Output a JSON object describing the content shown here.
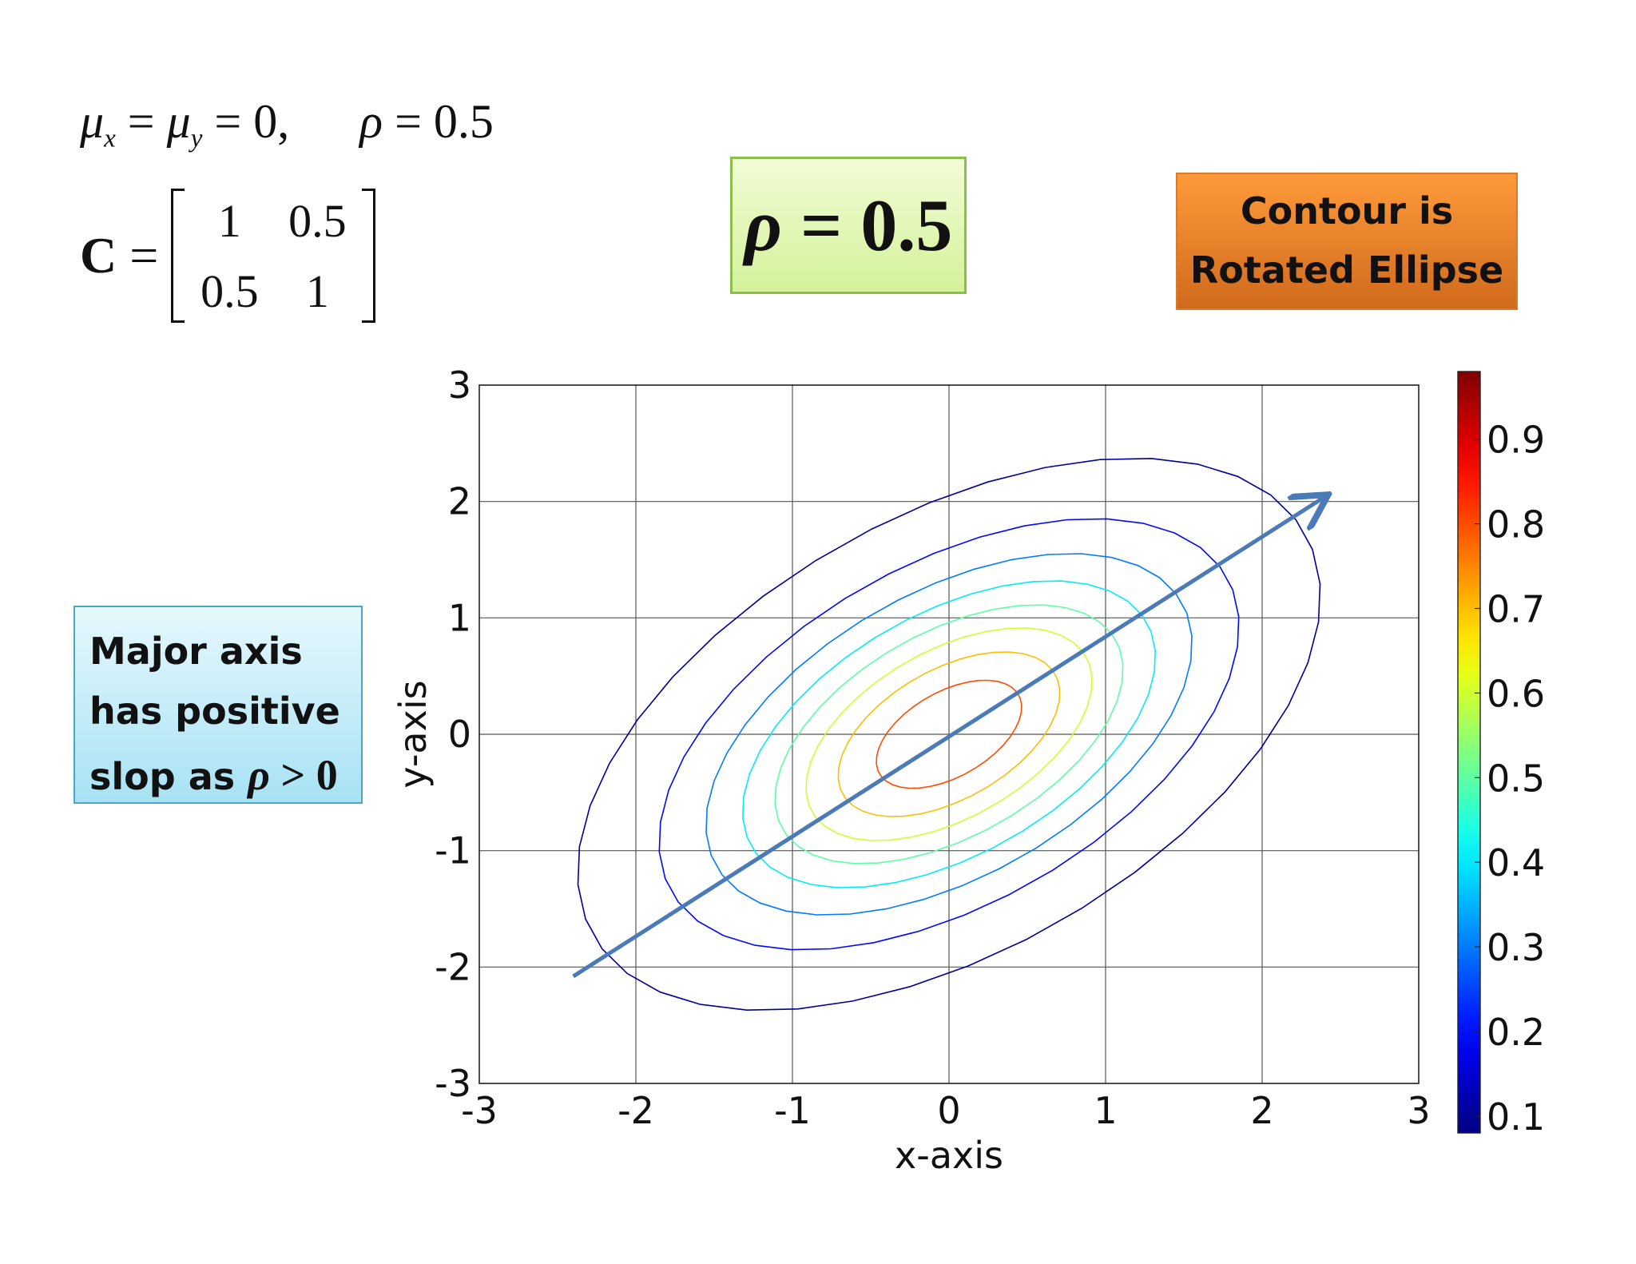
{
  "equations": {
    "mu_mu": "μ",
    "mu_sub_x": "x",
    "mu_eq1": " = ",
    "mu_sub_y": "y",
    "mu_tail": " = 0,",
    "rho_sym": "ρ",
    "rho_eq": " = 0.5",
    "cov_lhs": "C",
    "cov_eq": " =",
    "matrix": [
      "1",
      "0.5",
      "0.5",
      "1"
    ]
  },
  "rho_box": {
    "sym": "ρ",
    "text": " = 0.5"
  },
  "contour_box": {
    "line1": "Contour is",
    "line2": "Rotated Ellipse"
  },
  "major_box": {
    "line1": "Major axis",
    "line2": "has positive",
    "line3_prefix": "slop as ",
    "line3_sym": "ρ",
    "line3_tail": " > 0"
  },
  "chart_data": {
    "type": "contour",
    "xlabel": "x-axis",
    "ylabel": "y-axis",
    "xlim": [
      -3,
      3
    ],
    "ylim": [
      -3,
      3
    ],
    "xticks": [
      "-3",
      "-2",
      "-1",
      "0",
      "1",
      "2",
      "3"
    ],
    "yticks": [
      "-3",
      "-2",
      "-1",
      "0",
      "1",
      "2",
      "3"
    ],
    "grid": true,
    "colormap": "jet",
    "colorbar": {
      "range": [
        0.08,
        0.98
      ],
      "ticks": [
        "0.1",
        "0.2",
        "0.3",
        "0.4",
        "0.5",
        "0.6",
        "0.7",
        "0.8",
        "0.9"
      ]
    },
    "distribution": {
      "mu_x": 0,
      "mu_y": 0,
      "sigma_x": 1,
      "sigma_y": 1,
      "rho": 0.5
    },
    "contour_levels": [
      0.1,
      0.2,
      0.3,
      0.4,
      0.5,
      0.6,
      0.7,
      0.8,
      0.9
    ],
    "arrow": {
      "from": [
        -2.4,
        -2.08
      ],
      "to": [
        2.4,
        2.04
      ],
      "color": "#4a7ab8"
    }
  }
}
